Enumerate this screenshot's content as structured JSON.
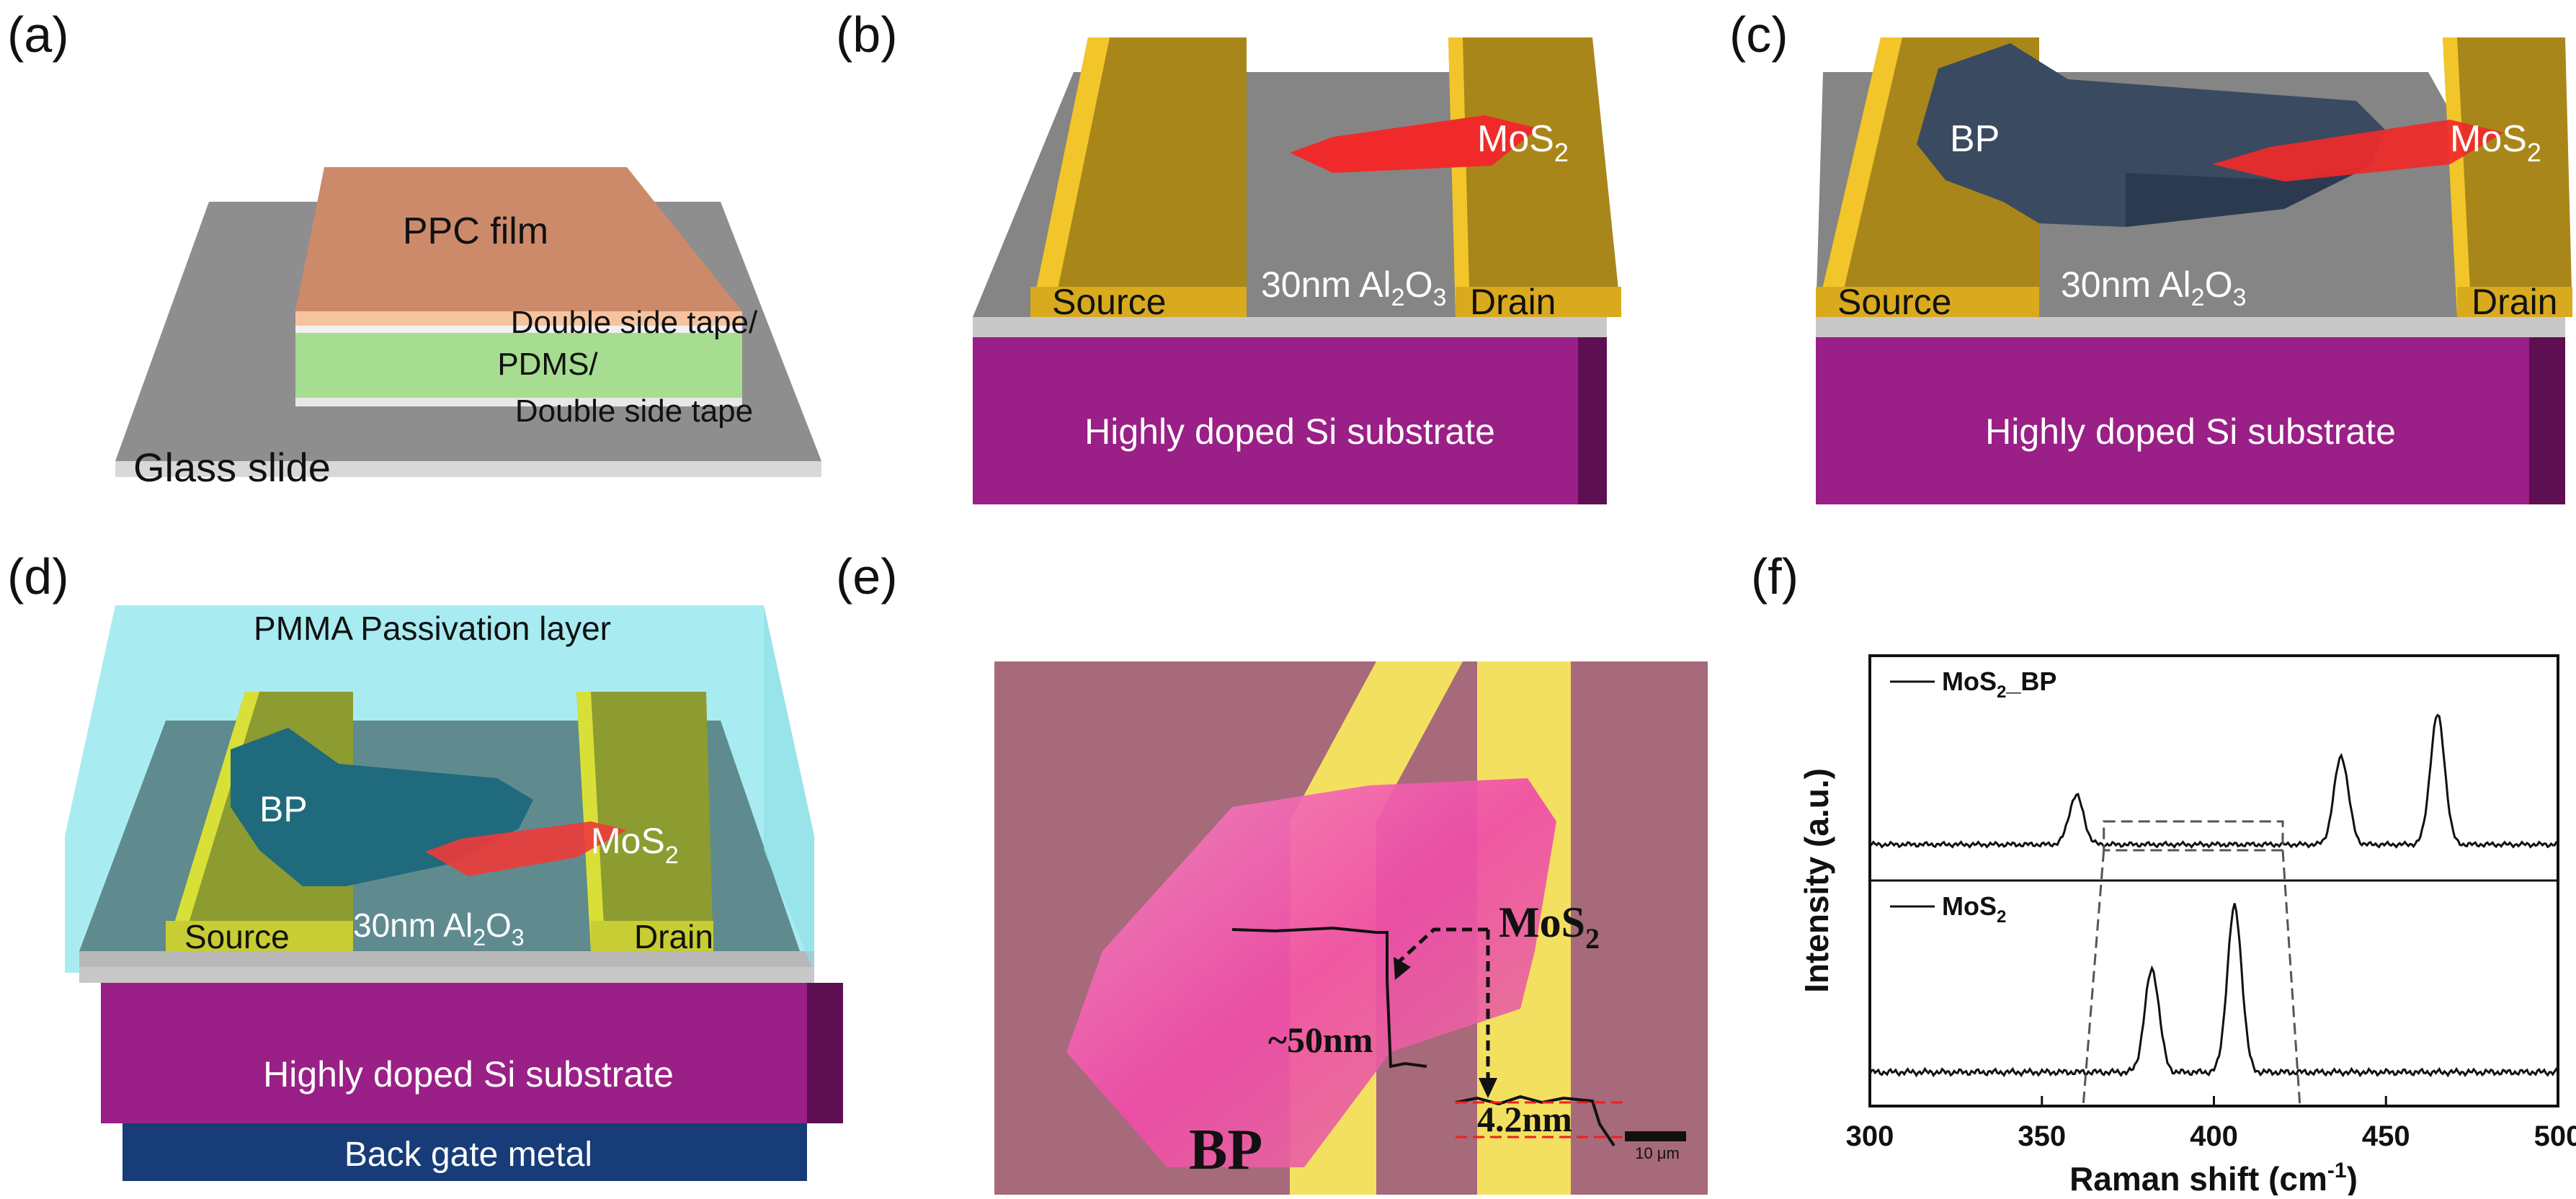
{
  "figure": {
    "panels": {
      "a": {
        "label": "(a)",
        "ppc": "PPC film",
        "tape1": "Double side tape/",
        "pdms": "PDMS/",
        "tape2": "Double side tape",
        "glass": "Glass slide"
      },
      "b": {
        "label": "(b)",
        "mos2": "MoS",
        "mos2_sub": "2",
        "source": "Source",
        "drain": "Drain",
        "oxide": "30nm Al",
        "oxide_sub": "2",
        "oxide_o": "O",
        "oxide_o_sub": "3",
        "substrate": "Highly doped Si substrate"
      },
      "c": {
        "label": "(c)",
        "bp": "BP",
        "mos2": "MoS",
        "mos2_sub": "2",
        "source": "Source",
        "drain": "Drain",
        "oxide": "30nm Al",
        "oxide_sub": "2",
        "oxide_o": "O",
        "oxide_o_sub": "3",
        "substrate": "Highly doped Si substrate"
      },
      "d": {
        "label": "(d)",
        "pmma": "PMMA Passivation layer",
        "bp": "BP",
        "mos2": "MoS",
        "mos2_sub": "2",
        "source": "Source",
        "drain": "Drain",
        "oxide": "30nm Al",
        "oxide_sub": "2",
        "oxide_o": "O",
        "oxide_o_sub": "3",
        "substrate": "Highly doped Si substrate",
        "gate": "Back gate metal"
      },
      "e": {
        "label": "(e)",
        "mos2": "MoS",
        "mos2_sub": "2",
        "bp": "BP",
        "t50": "~50nm",
        "t42": "4.2nm",
        "scale": "10 μm"
      },
      "f": {
        "label": "(f)"
      }
    },
    "colors": {
      "gold": "#c8a020",
      "magenta": "#a0208a",
      "red": "#ee2020",
      "gray": "#8a8a8a",
      "cyan": "#9fe4ee"
    }
  },
  "chart_data": {
    "type": "line",
    "xlabel": "Raman shift (cm",
    "xlabel_sup": "-1",
    "xlabel_end": ")",
    "ylabel": "Intensity (a.u.)",
    "xlim": [
      300,
      500
    ],
    "xticks": [
      300,
      350,
      400,
      450,
      500
    ],
    "series": [
      {
        "name": "MoS",
        "name_sub": "2",
        "name_end": "_BP",
        "peaks": [
          {
            "x": 360,
            "y": 0.38
          },
          {
            "x": 437,
            "y": 0.68
          },
          {
            "x": 465,
            "y": 1.0
          }
        ]
      },
      {
        "name": "MoS",
        "name_sub": "2",
        "name_end": "",
        "peaks": [
          {
            "x": 382,
            "y": 0.62
          },
          {
            "x": 406,
            "y": 1.0
          }
        ]
      }
    ],
    "zoom_box_x": [
      368,
      420
    ]
  }
}
